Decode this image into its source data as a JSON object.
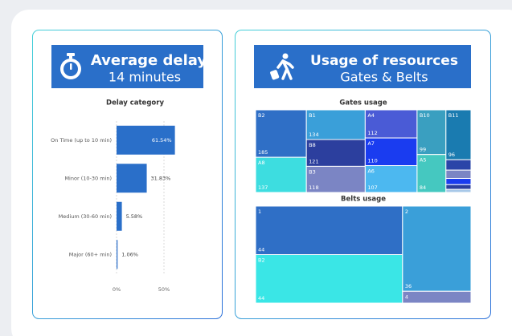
{
  "headers": [
    {
      "title": "Average delay",
      "subtitle": "14 minutes"
    },
    {
      "title": "Usage of resources",
      "subtitle": "Gates & Belts"
    }
  ],
  "chart_data": [
    {
      "type": "bar",
      "orientation": "horizontal",
      "title": "Delay category",
      "categories": [
        "On Time (up to 10 min)",
        "Minor (10-30 min)",
        "Medium (30-60 min)",
        "Major (60+ min)"
      ],
      "values": [
        61.54,
        31.83,
        5.58,
        1.06
      ],
      "value_labels": [
        "61.54%",
        "31.83%",
        "5.58%",
        "1.06%"
      ],
      "color": "#2a6fc9",
      "xlim": [
        0,
        65
      ],
      "xticks": [
        {
          "value": 0,
          "label": "0%"
        },
        {
          "value": 50,
          "label": "50%"
        }
      ],
      "grid": true
    },
    {
      "type": "treemap",
      "title": "Gates usage",
      "labels": [
        "B2",
        "A8",
        "B1",
        "B8",
        "B3",
        "A4",
        "A7",
        "A6",
        "B10",
        "A5",
        "B11",
        null,
        null,
        null,
        null,
        null
      ],
      "values": [
        185,
        137,
        134,
        121,
        118,
        112,
        110,
        107,
        99,
        84,
        96,
        20,
        16,
        12,
        9,
        6
      ],
      "colors": [
        "#2f6fc6",
        "#3ddde0",
        "#3a9fd9",
        "#2c3f9e",
        "#7b85c4",
        "#4a5bd6",
        "#1a3cf0",
        "#4cb8f0",
        "#3a9fc0",
        "#45c8c0",
        "#1a7bb0",
        "#2a45a8",
        "#7b85c4",
        "#1a3cf0",
        "#2c3f9e",
        "#a8c8e8"
      ]
    },
    {
      "type": "treemap",
      "title": "Belts usage",
      "labels": [
        "1",
        "B2",
        "2",
        "4"
      ],
      "values": [
        44,
        44,
        36,
        5
      ],
      "colors": [
        "#2f6fc6",
        "#3ae6e6",
        "#3a9fd9",
        "#7b85c4"
      ]
    }
  ]
}
